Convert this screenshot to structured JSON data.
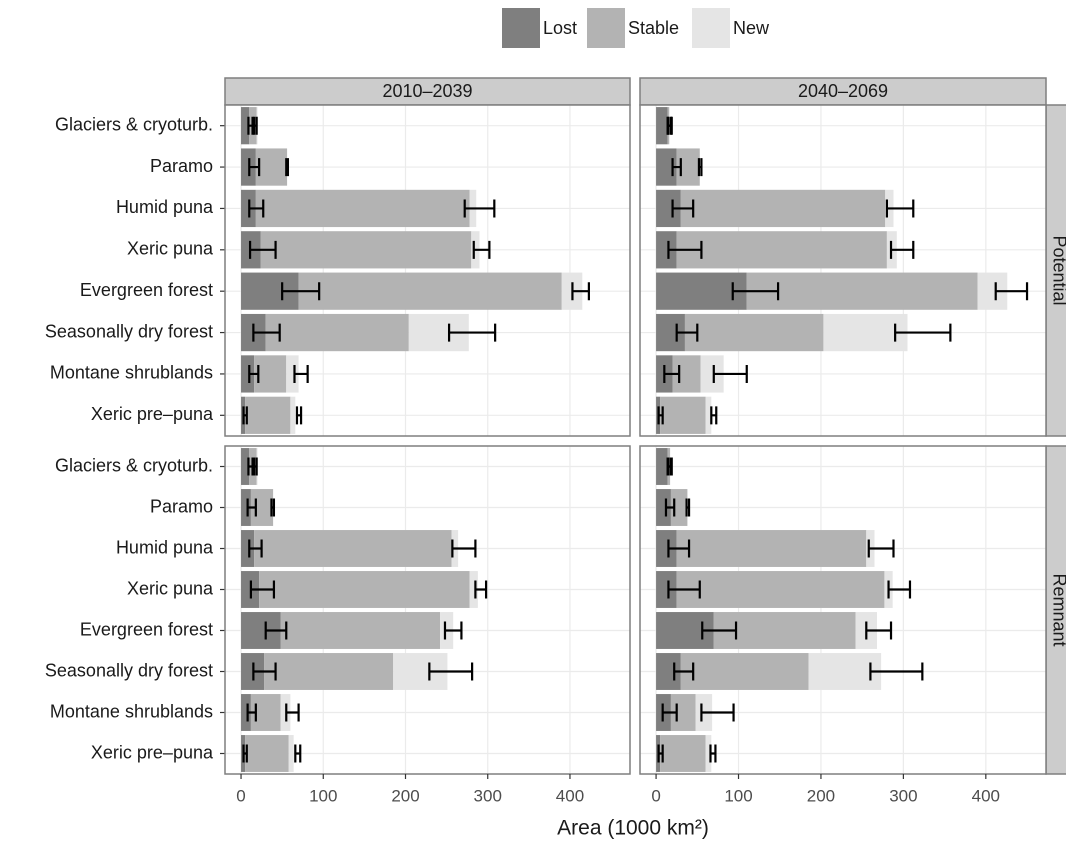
{
  "chart_data": {
    "type": "bar",
    "xlabel": "Area (1000 km²)",
    "facet_columns": [
      "2010–2039",
      "2040–2069"
    ],
    "facet_rows": [
      "Potential",
      "Remnant"
    ],
    "categories": [
      "Glaciers & cryoturb.",
      "Paramo",
      "Humid puna",
      "Xeric puna",
      "Evergreen forest",
      "Seasonally dry forest",
      "Montane shrublands",
      "Xeric pre–puna"
    ],
    "series": [
      {
        "name": "Lost",
        "color": "#7f7f7f"
      },
      {
        "name": "Stable",
        "color": "#b3b3b3"
      },
      {
        "name": "New",
        "color": "#e5e5e5"
      }
    ],
    "xlim": [
      -19.5,
      473
    ],
    "xticks": [
      0,
      100,
      200,
      300,
      400
    ],
    "grid": true,
    "legend": "top",
    "panels": [
      {
        "column": 0,
        "row": 0,
        "series": [
          {
            "values": [
              10,
              18,
              18,
              24,
              70,
              30,
              16,
              5
            ]
          },
          {
            "values": [
              9,
              38,
              260,
              256,
              320,
              174,
              39,
              55
            ]
          },
          {
            "values": [
              1,
              0,
              8,
              10,
              25,
              73,
              15,
              6
            ]
          }
        ],
        "lost_error": [
          [
            9,
            14
          ],
          [
            10,
            22
          ],
          [
            10,
            27
          ],
          [
            11,
            42
          ],
          [
            50,
            95
          ],
          [
            15,
            47
          ],
          [
            10,
            21
          ],
          [
            3,
            7
          ]
        ],
        "total_error": [
          [
            16,
            19
          ],
          [
            55,
            57
          ],
          [
            272,
            308
          ],
          [
            283,
            302
          ],
          [
            403,
            423
          ],
          [
            253,
            309
          ],
          [
            65,
            81
          ],
          [
            68,
            73
          ]
        ]
      },
      {
        "column": 1,
        "row": 0,
        "series": [
          {
            "values": [
              14,
              25,
              30,
              25,
              110,
              35,
              20,
              5
            ]
          },
          {
            "values": [
              2,
              28,
              248,
              255,
              280,
              168,
              34,
              55
            ]
          },
          {
            "values": [
              0,
              0,
              10,
              12,
              36,
              102,
              28,
              7
            ]
          }
        ],
        "lost_error": [
          [
            14,
            18
          ],
          [
            20,
            30
          ],
          [
            20,
            45
          ],
          [
            15,
            55
          ],
          [
            93,
            148
          ],
          [
            25,
            50
          ],
          [
            10,
            28
          ],
          [
            3,
            8
          ]
        ],
        "total_error": [
          [
            15,
            19
          ],
          [
            52,
            55
          ],
          [
            280,
            312
          ],
          [
            285,
            312
          ],
          [
            412,
            450
          ],
          [
            290,
            357
          ],
          [
            70,
            110
          ],
          [
            67,
            73
          ]
        ]
      },
      {
        "column": 0,
        "row": 1,
        "series": [
          {
            "values": [
              10,
              12,
              16,
              22,
              48,
              28,
              12,
              5
            ]
          },
          {
            "values": [
              9,
              27,
              240,
              256,
              194,
              157,
              36,
              53
            ]
          },
          {
            "values": [
              1,
              0,
              8,
              10,
              16,
              66,
              12,
              6
            ]
          }
        ],
        "lost_error": [
          [
            9,
            14
          ],
          [
            8,
            18
          ],
          [
            10,
            25
          ],
          [
            12,
            40
          ],
          [
            30,
            55
          ],
          [
            15,
            42
          ],
          [
            8,
            18
          ],
          [
            3,
            7
          ]
        ],
        "total_error": [
          [
            16,
            19
          ],
          [
            37,
            40
          ],
          [
            257,
            285
          ],
          [
            285,
            298
          ],
          [
            248,
            268
          ],
          [
            229,
            281
          ],
          [
            55,
            70
          ],
          [
            66,
            72
          ]
        ]
      },
      {
        "column": 1,
        "row": 1,
        "series": [
          {
            "values": [
              14,
              18,
              25,
              25,
              70,
              30,
              18,
              5
            ]
          },
          {
            "values": [
              3,
              20,
              230,
              252,
              172,
              155,
              30,
              55
            ]
          },
          {
            "values": [
              0,
              0,
              10,
              10,
              26,
              88,
              20,
              7
            ]
          }
        ],
        "lost_error": [
          [
            14,
            18
          ],
          [
            12,
            22
          ],
          [
            15,
            40
          ],
          [
            15,
            53
          ],
          [
            56,
            97
          ],
          [
            22,
            45
          ],
          [
            8,
            25
          ],
          [
            3,
            8
          ]
        ],
        "total_error": [
          [
            15,
            19
          ],
          [
            37,
            40
          ],
          [
            258,
            288
          ],
          [
            282,
            308
          ],
          [
            255,
            285
          ],
          [
            260,
            323
          ],
          [
            55,
            94
          ],
          [
            66,
            72
          ]
        ]
      }
    ]
  }
}
